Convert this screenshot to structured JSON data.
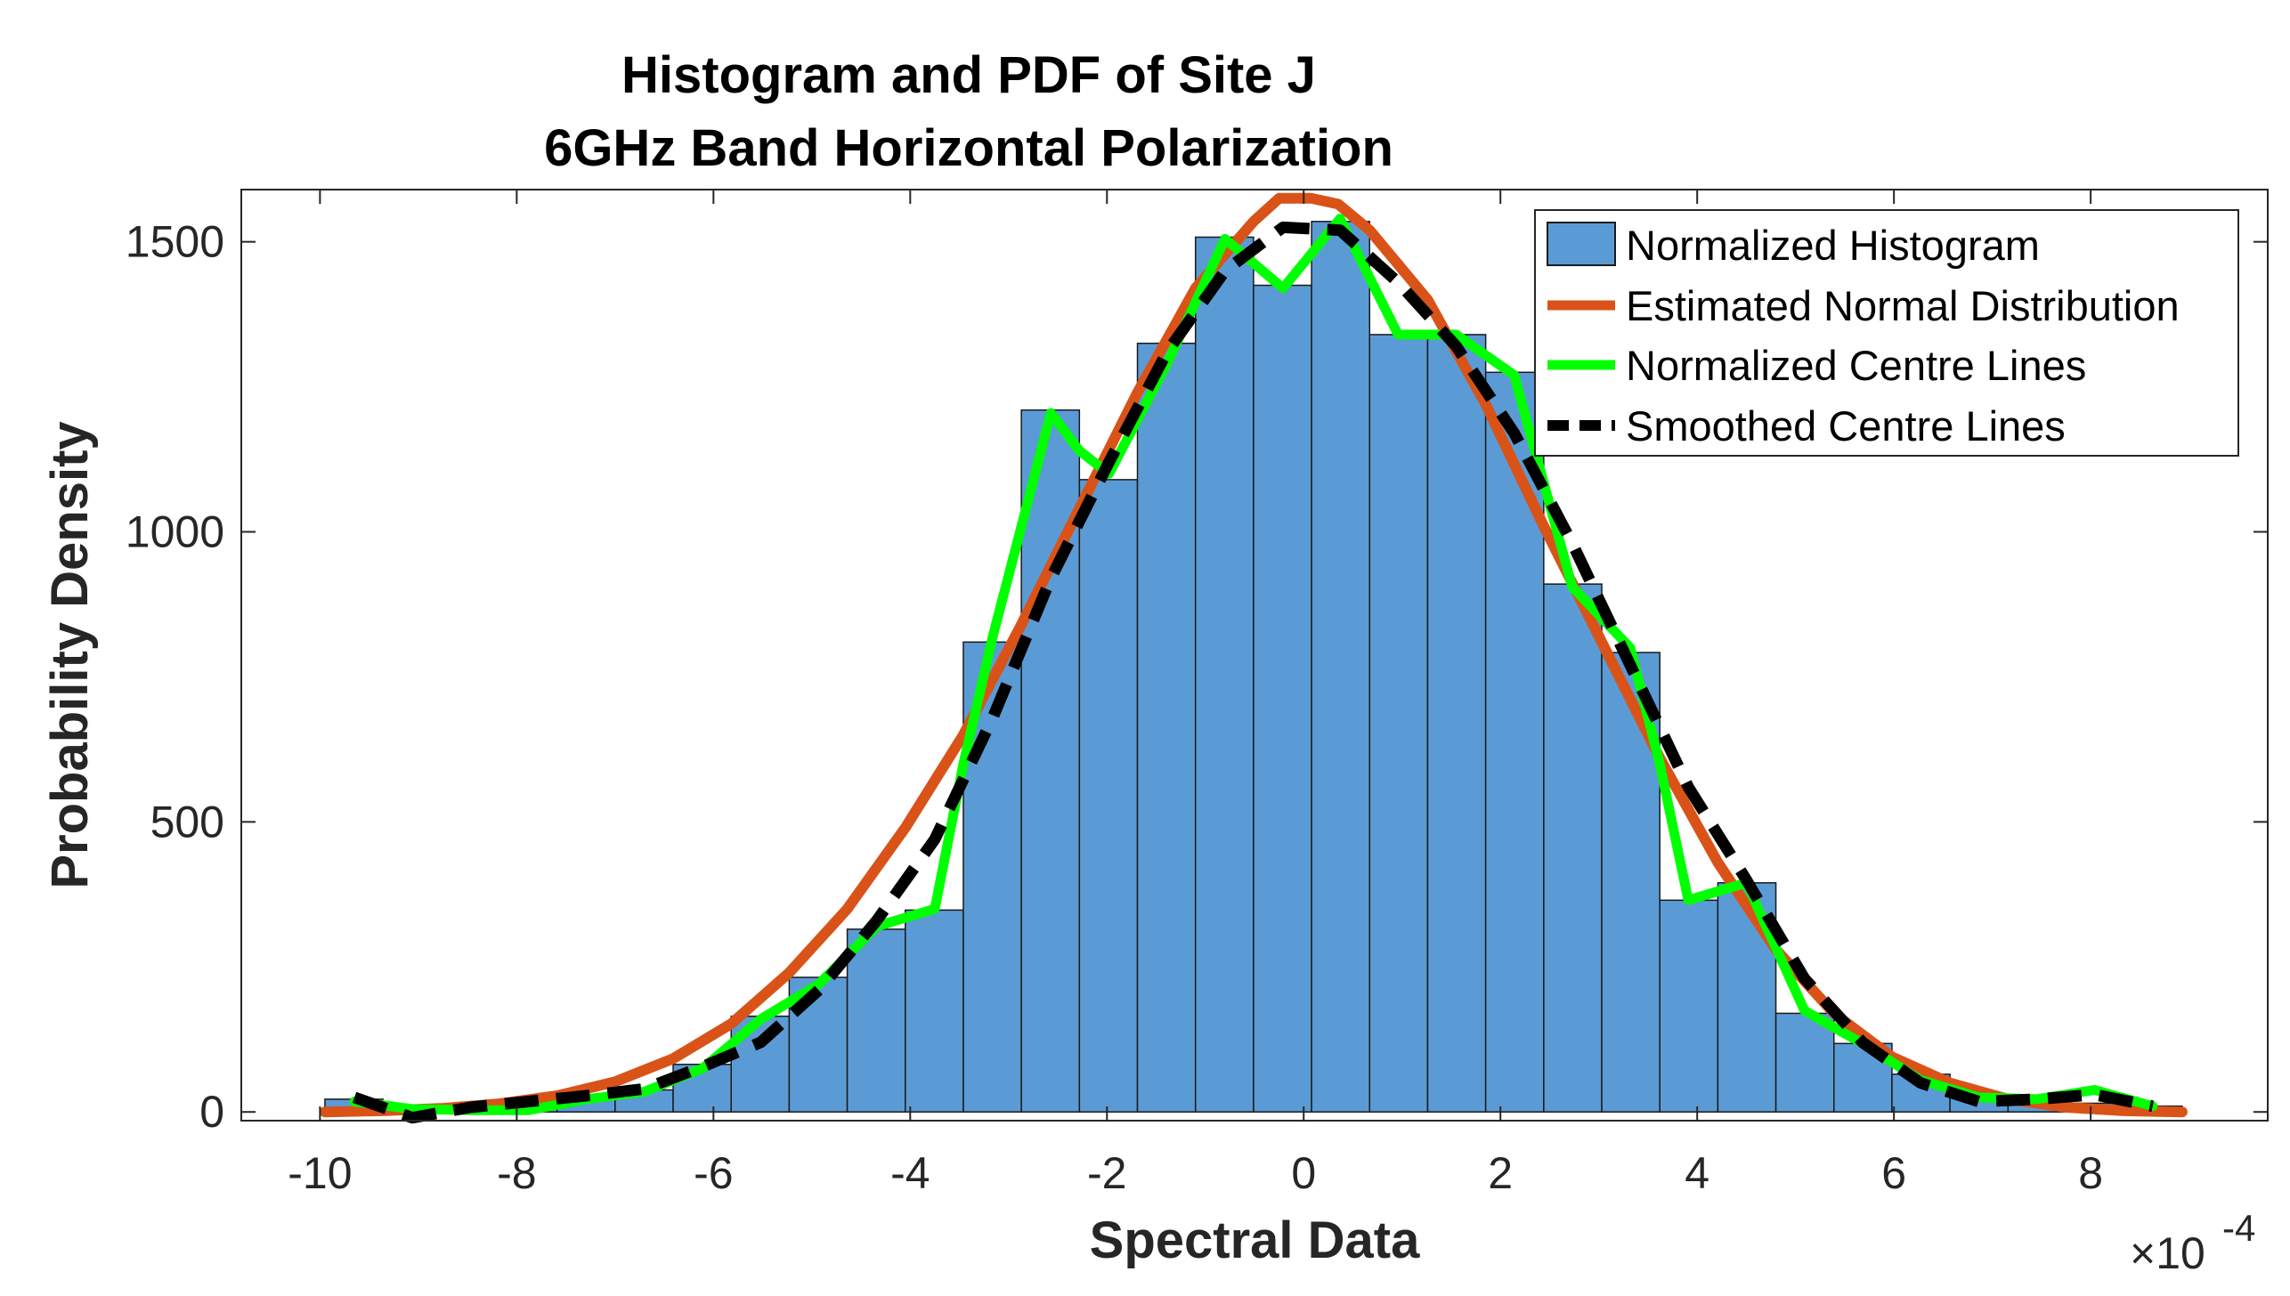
{
  "chart_data": {
    "type": "bar",
    "title": [
      "Histogram and PDF of Site J",
      "6GHz Band Horizontal Polarization"
    ],
    "xlabel": "Spectral Data",
    "ylabel": "Probability Density",
    "x_multiplier_label": {
      "base": "×10",
      "exponent": "-4"
    },
    "xlim": [
      -10.8,
      9.8
    ],
    "ylim": [
      -15,
      1590
    ],
    "xticks": [
      -10,
      -8,
      -6,
      -4,
      -2,
      0,
      2,
      4,
      6,
      8
    ],
    "xtick_labels": [
      "-10",
      "-8",
      "-6",
      "-4",
      "-2",
      "0",
      "2",
      "4",
      "6",
      "8"
    ],
    "yticks": [
      0,
      500,
      1000,
      1500
    ],
    "ytick_labels": [
      "0",
      "500",
      "1000",
      "1500"
    ],
    "grid": false,
    "legend_position": "top-right",
    "histogram": {
      "name": "Normalized Histogram",
      "color": "#5b9bd5",
      "edge_color": "#1a1a1a",
      "bin_edges": [
        -9.95,
        -9.36,
        -8.77,
        -8.18,
        -7.59,
        -7.0,
        -6.41,
        -5.82,
        -5.23,
        -4.64,
        -4.05,
        -3.46,
        -2.87,
        -2.28,
        -1.69,
        -1.1,
        -0.51,
        0.08,
        0.67,
        1.26,
        1.85,
        2.44,
        3.03,
        3.62,
        4.21,
        4.8,
        5.39,
        5.98,
        6.57,
        7.16,
        7.75,
        8.34,
        8.93
      ],
      "values": [
        22,
        12,
        8,
        12,
        22,
        38,
        82,
        165,
        232,
        315,
        348,
        810,
        1210,
        1090,
        1325,
        1508,
        1425,
        1535,
        1340,
        1340,
        1275,
        910,
        792,
        365,
        395,
        170,
        118,
        65,
        28,
        15,
        15,
        10
      ]
    },
    "series": [
      {
        "name": "Estimated Normal Distribution",
        "color": "#d95319",
        "style": "solid",
        "x": [
          -9.95,
          -9.36,
          -8.77,
          -8.18,
          -7.59,
          -7.0,
          -6.41,
          -5.82,
          -5.23,
          -4.64,
          -4.05,
          -3.46,
          -2.87,
          -2.28,
          -1.69,
          -1.1,
          -0.51,
          -0.25,
          0.08,
          0.35,
          0.67,
          1.26,
          1.85,
          2.44,
          3.03,
          3.62,
          4.21,
          4.8,
          5.39,
          5.98,
          6.57,
          7.16,
          7.75,
          8.34,
          8.93
        ],
        "values": [
          0,
          2,
          6,
          14,
          28,
          52,
          92,
          152,
          240,
          350,
          490,
          650,
          840,
          1040,
          1240,
          1420,
          1535,
          1575,
          1575,
          1565,
          1520,
          1400,
          1220,
          1010,
          810,
          610,
          430,
          280,
          170,
          95,
          50,
          22,
          8,
          2,
          0
        ]
      },
      {
        "name": "Normalized Centre Lines",
        "color": "#00ff00",
        "style": "solid",
        "x": [
          -9.65,
          -9.06,
          -8.47,
          -7.88,
          -7.29,
          -6.7,
          -6.11,
          -5.52,
          -4.93,
          -4.34,
          -3.75,
          -3.46,
          -3.16,
          -2.57,
          -2.28,
          -1.98,
          -1.39,
          -0.8,
          -0.21,
          0.37,
          0.96,
          1.55,
          2.14,
          2.73,
          3.32,
          3.62,
          3.91,
          4.5,
          5.09,
          5.68,
          6.27,
          6.86,
          7.45,
          8.04,
          8.63
        ],
        "values": [
          18,
          5,
          3,
          3,
          22,
          35,
          75,
          160,
          220,
          320,
          350,
          600,
          820,
          1205,
          1140,
          1100,
          1290,
          1505,
          1420,
          1540,
          1340,
          1340,
          1270,
          905,
          800,
          600,
          365,
          395,
          175,
          118,
          55,
          25,
          22,
          38,
          10
        ]
      },
      {
        "name": "Smoothed Centre Lines",
        "color": "#000000",
        "style": "dashed",
        "x": [
          -9.65,
          -9.06,
          -8.47,
          -7.88,
          -7.29,
          -6.7,
          -6.11,
          -5.52,
          -4.93,
          -4.34,
          -3.75,
          -3.16,
          -2.57,
          -1.98,
          -1.39,
          -0.8,
          -0.21,
          0.37,
          0.96,
          1.55,
          2.14,
          2.73,
          3.32,
          3.91,
          4.5,
          5.09,
          5.68,
          6.27,
          6.86,
          7.45,
          8.04,
          8.63
        ],
        "values": [
          25,
          -10,
          8,
          18,
          28,
          40,
          78,
          120,
          210,
          330,
          470,
          680,
          920,
          1120,
          1310,
          1450,
          1525,
          1520,
          1430,
          1320,
          1170,
          980,
          770,
          560,
          400,
          230,
          120,
          50,
          18,
          22,
          30,
          10
        ]
      }
    ]
  }
}
